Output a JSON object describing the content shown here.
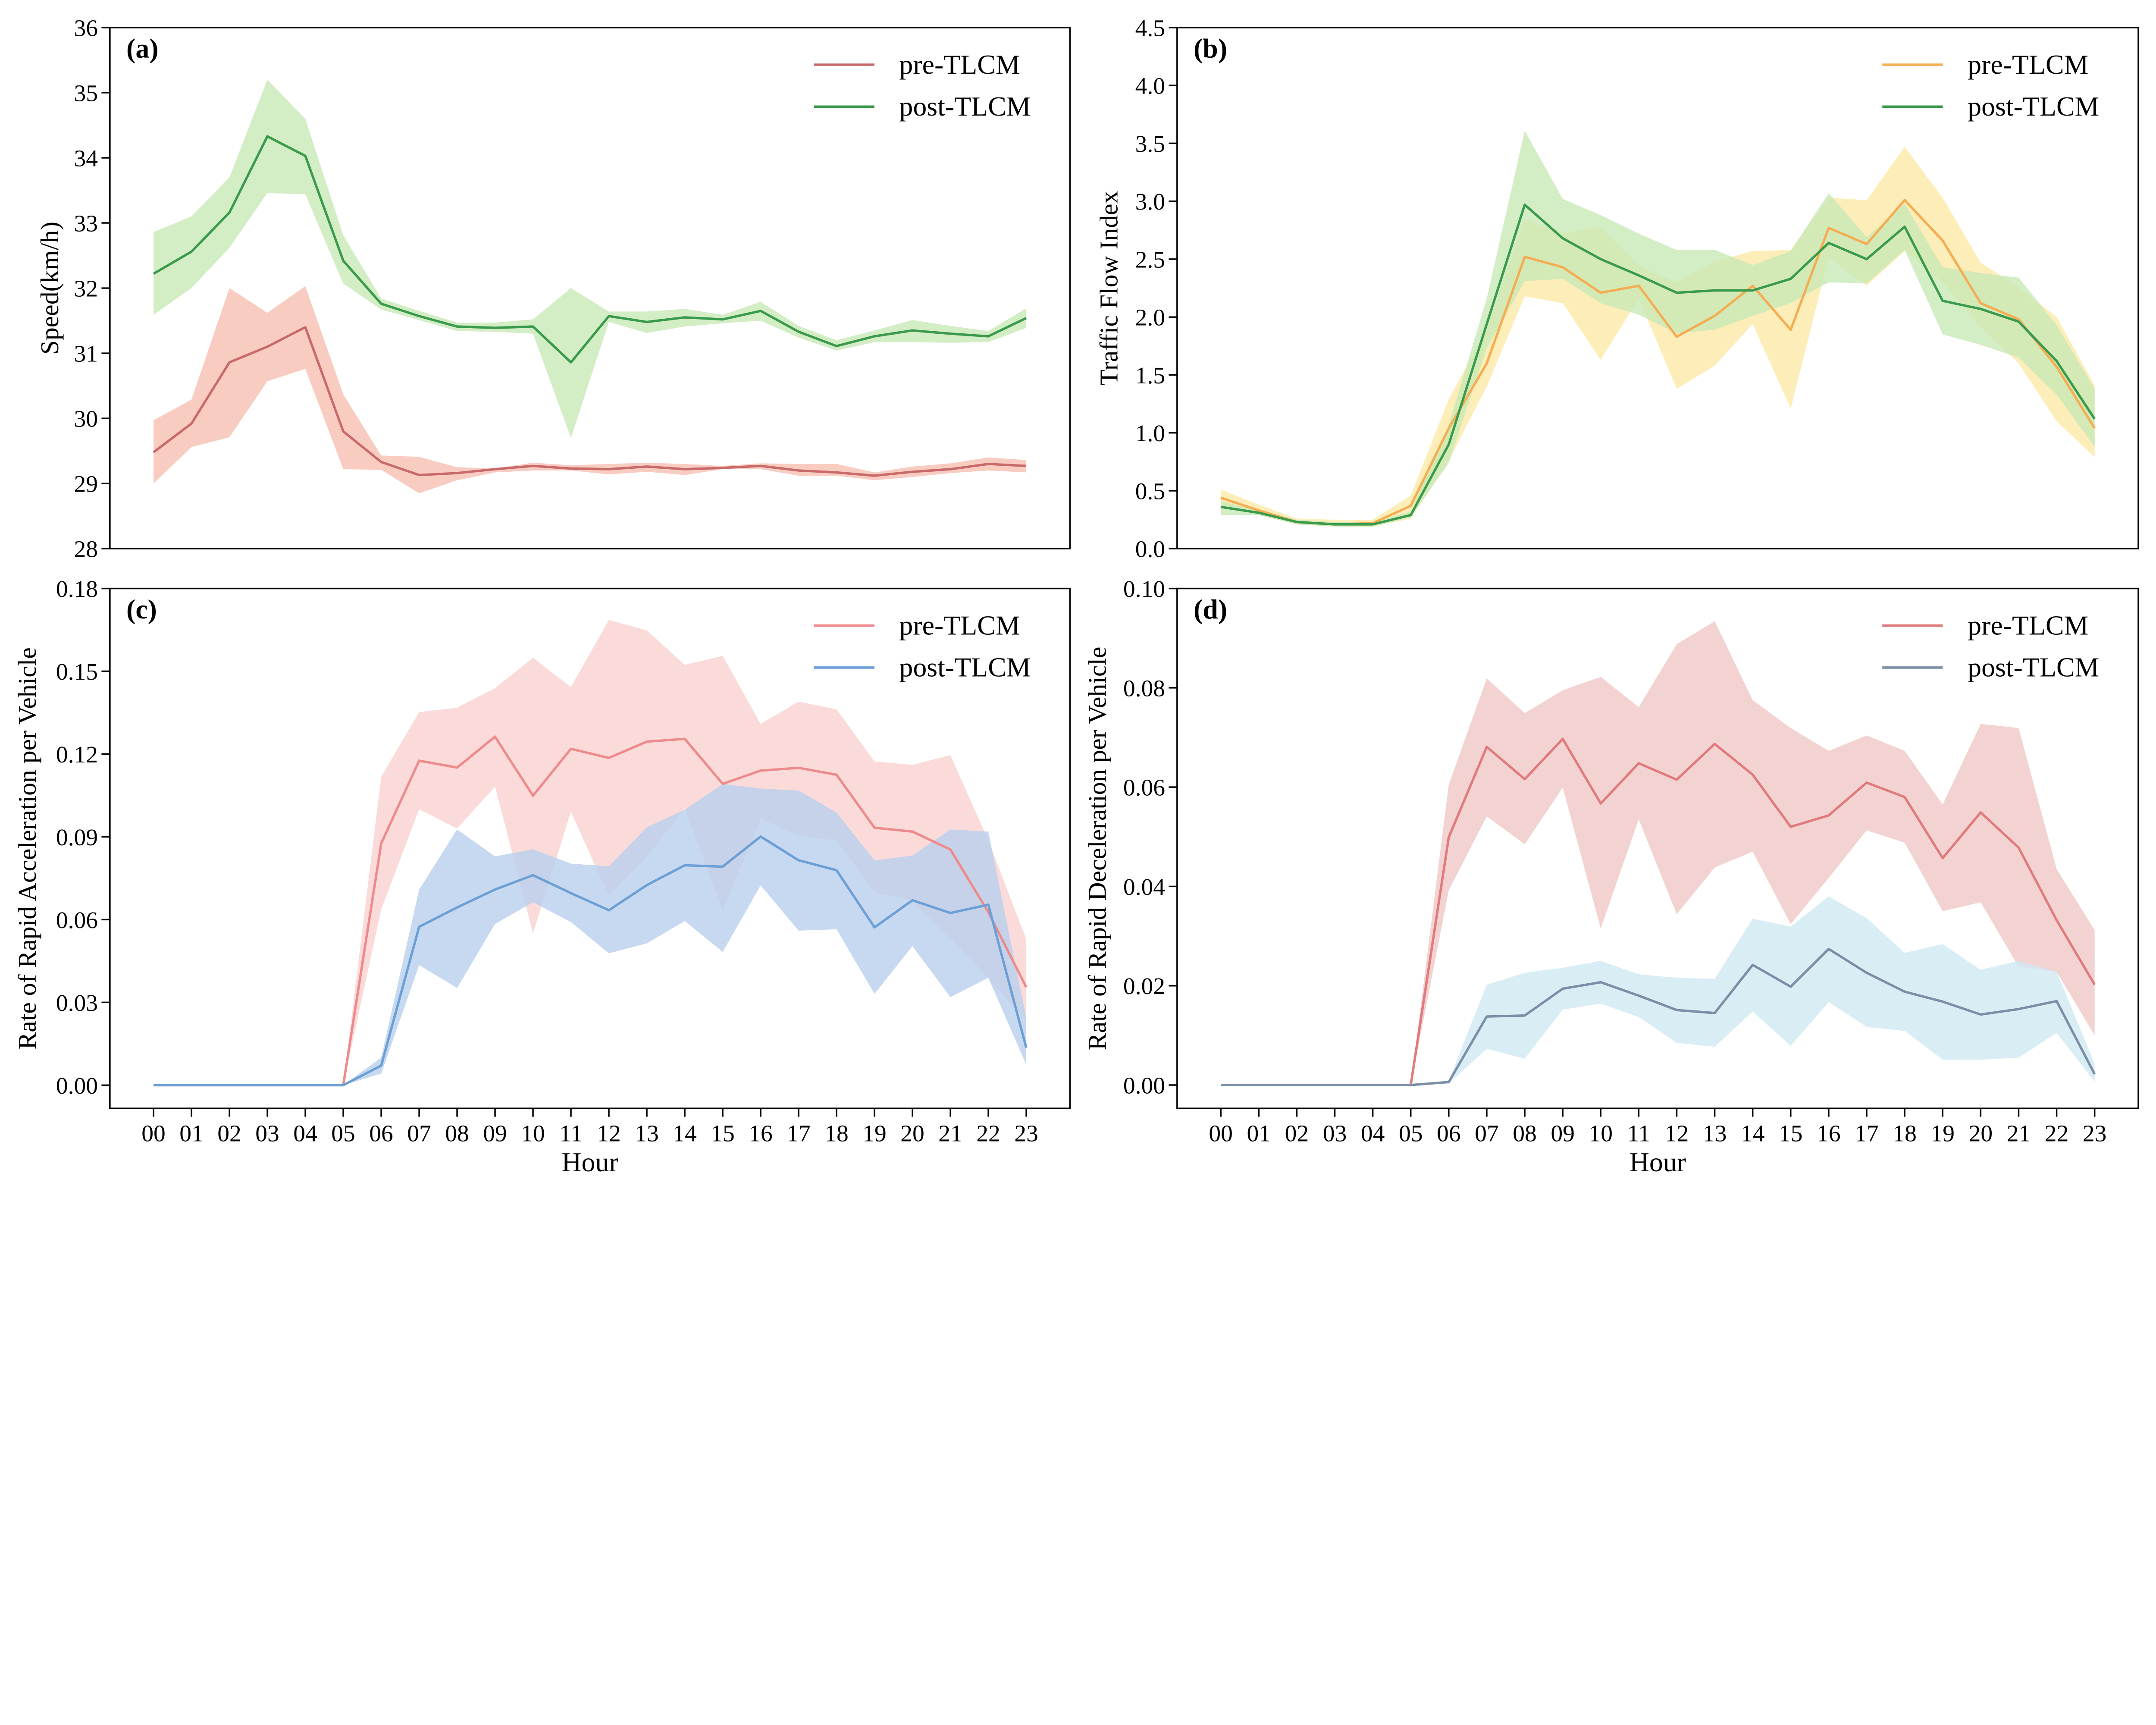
{
  "chart_data": [
    {
      "type": "line",
      "panel_label": "(a)",
      "xlabel": "",
      "ylabel": "Speed(km/h)",
      "x": [
        "00",
        "01",
        "02",
        "03",
        "04",
        "05",
        "06",
        "07",
        "08",
        "09",
        "10",
        "11",
        "12",
        "13",
        "14",
        "15",
        "16",
        "17",
        "18",
        "19",
        "20",
        "21",
        "22",
        "23"
      ],
      "xlim": [
        -1.15,
        24.15
      ],
      "ylim": [
        28,
        36
      ],
      "yticks": [
        "28",
        "29",
        "30",
        "31",
        "32",
        "33",
        "34",
        "35",
        "36"
      ],
      "ytick_values": [
        28,
        29,
        30,
        31,
        32,
        33,
        34,
        35,
        36
      ],
      "show_xticks": false,
      "grid": false,
      "legend_position": "top-right",
      "series": [
        {
          "name": "pre-TLCM",
          "color": "#c96a6a",
          "band_color": "#f7bfb3",
          "values": [
            29.48,
            29.92,
            30.86,
            31.1,
            31.4,
            29.8,
            29.33,
            29.13,
            29.16,
            29.22,
            29.27,
            29.23,
            29.22,
            29.26,
            29.22,
            29.24,
            29.27,
            29.2,
            29.17,
            29.12,
            29.18,
            29.22,
            29.3,
            29.27
          ],
          "upper": [
            29.97,
            30.29,
            32.0,
            31.62,
            32.03,
            30.37,
            29.43,
            29.41,
            29.25,
            29.23,
            29.32,
            29.28,
            29.3,
            29.32,
            29.3,
            29.27,
            29.31,
            29.3,
            29.3,
            29.17,
            29.26,
            29.31,
            29.4,
            29.36
          ],
          "lower": [
            29.0,
            29.56,
            29.71,
            30.57,
            30.76,
            29.22,
            29.21,
            28.85,
            29.05,
            29.17,
            29.2,
            29.2,
            29.14,
            29.18,
            29.13,
            29.22,
            29.22,
            29.12,
            29.12,
            29.05,
            29.1,
            29.16,
            29.2,
            29.17
          ]
        },
        {
          "name": "post-TLCM",
          "color": "#3a9a4c",
          "band_color": "#c8e9b6",
          "values": [
            32.22,
            32.56,
            33.16,
            34.33,
            34.03,
            32.42,
            31.76,
            31.57,
            31.41,
            31.39,
            31.41,
            30.86,
            31.57,
            31.48,
            31.55,
            31.52,
            31.65,
            31.33,
            31.11,
            31.26,
            31.35,
            31.3,
            31.26,
            31.54
          ],
          "upper": [
            32.86,
            33.1,
            33.7,
            35.2,
            34.6,
            32.81,
            31.84,
            31.65,
            31.47,
            31.47,
            31.52,
            32.0,
            31.64,
            31.64,
            31.68,
            31.59,
            31.79,
            31.42,
            31.2,
            31.35,
            31.51,
            31.42,
            31.34,
            31.69
          ],
          "lower": [
            31.59,
            32.0,
            32.62,
            33.46,
            33.44,
            32.07,
            31.67,
            31.51,
            31.34,
            31.33,
            31.3,
            29.7,
            31.48,
            31.31,
            31.41,
            31.46,
            31.5,
            31.24,
            31.04,
            31.17,
            31.17,
            31.16,
            31.17,
            31.39
          ]
        }
      ]
    },
    {
      "type": "line",
      "panel_label": "(b)",
      "xlabel": "",
      "ylabel": "Traffic Flow Index",
      "x": [
        "00",
        "01",
        "02",
        "03",
        "04",
        "05",
        "06",
        "07",
        "08",
        "09",
        "10",
        "11",
        "12",
        "13",
        "14",
        "15",
        "16",
        "17",
        "18",
        "19",
        "20",
        "21",
        "22",
        "23"
      ],
      "xlim": [
        -1.15,
        24.15
      ],
      "ylim": [
        0,
        4.5
      ],
      "yticks": [
        "0.0",
        "0.5",
        "1.0",
        "1.5",
        "2.0",
        "2.5",
        "3.0",
        "3.5",
        "4.0",
        "4.5"
      ],
      "ytick_values": [
        0,
        0.5,
        1,
        1.5,
        2,
        2.5,
        3,
        3.5,
        4,
        4.5
      ],
      "show_xticks": false,
      "grid": false,
      "legend_position": "top-right",
      "series": [
        {
          "name": "pre-TLCM",
          "color": "#f4ad52",
          "band_color": "#fde9a6",
          "values": [
            0.44,
            0.33,
            0.23,
            0.21,
            0.22,
            0.37,
            1.04,
            1.6,
            2.52,
            2.43,
            2.21,
            2.27,
            1.83,
            2.01,
            2.27,
            1.89,
            2.77,
            2.63,
            3.01,
            2.66,
            2.12,
            1.98,
            1.57,
            1.04
          ],
          "upper": [
            0.51,
            0.38,
            0.26,
            0.25,
            0.25,
            0.46,
            1.29,
            1.9,
            2.85,
            2.72,
            2.78,
            2.44,
            2.3,
            2.48,
            2.57,
            2.58,
            3.03,
            3.01,
            3.47,
            3.03,
            2.47,
            2.26,
            2.0,
            1.41
          ],
          "lower": [
            0.37,
            0.29,
            0.21,
            0.19,
            0.19,
            0.26,
            0.76,
            1.4,
            2.18,
            2.12,
            1.63,
            2.16,
            1.38,
            1.58,
            1.94,
            1.21,
            2.51,
            2.27,
            2.57,
            2.3,
            1.91,
            1.6,
            1.1,
            0.79
          ]
        },
        {
          "name": "post-TLCM",
          "color": "#3a9a4c",
          "band_color": "#c8e9b6",
          "values": [
            0.36,
            0.31,
            0.23,
            0.21,
            0.21,
            0.29,
            0.9,
            1.94,
            2.97,
            2.68,
            2.5,
            2.36,
            2.21,
            2.23,
            2.23,
            2.33,
            2.64,
            2.5,
            2.78,
            2.14,
            2.07,
            1.96,
            1.62,
            1.12
          ],
          "upper": [
            0.41,
            0.33,
            0.25,
            0.23,
            0.23,
            0.32,
            1.07,
            2.16,
            3.61,
            3.02,
            2.88,
            2.72,
            2.58,
            2.58,
            2.45,
            2.57,
            3.07,
            2.69,
            2.98,
            2.43,
            2.38,
            2.34,
            1.93,
            1.38
          ],
          "lower": [
            0.29,
            0.29,
            0.21,
            0.19,
            0.19,
            0.27,
            0.74,
            1.73,
            2.31,
            2.33,
            2.12,
            2.02,
            1.86,
            1.89,
            2.01,
            2.12,
            2.3,
            2.29,
            2.58,
            1.85,
            1.76,
            1.65,
            1.33,
            0.88
          ]
        }
      ]
    },
    {
      "type": "line",
      "panel_label": "(c)",
      "xlabel": "Hour",
      "ylabel": "Rate of Rapid Acceleration per Vehicle",
      "x": [
        "00",
        "01",
        "02",
        "03",
        "04",
        "05",
        "06",
        "07",
        "08",
        "09",
        "10",
        "11",
        "12",
        "13",
        "14",
        "15",
        "16",
        "17",
        "18",
        "19",
        "20",
        "21",
        "22",
        "23"
      ],
      "xlim": [
        -1.15,
        24.15
      ],
      "ylim": [
        -0.0084,
        0.18
      ],
      "yticks": [
        "0.00",
        "0.03",
        "0.06",
        "0.09",
        "0.12",
        "0.15",
        "0.18"
      ],
      "ytick_values": [
        0,
        0.03,
        0.06,
        0.09,
        0.12,
        0.15,
        0.18
      ],
      "show_xticks": true,
      "grid": false,
      "legend_position": "top-right",
      "series": [
        {
          "name": "pre-TLCM",
          "color": "#ee8a8c",
          "band_color": "#f9d2d1",
          "values": [
            0,
            0,
            0,
            0,
            0,
            0,
            0.0876,
            0.1176,
            0.1151,
            0.1263,
            0.1049,
            0.1219,
            0.1186,
            0.1245,
            0.1255,
            0.1092,
            0.114,
            0.115,
            0.1125,
            0.0933,
            0.0919,
            0.0854,
            0.0627,
            0.0355
          ],
          "upper": [
            0,
            0,
            0,
            0,
            0,
            0,
            0.1118,
            0.1352,
            0.1368,
            0.1439,
            0.1549,
            0.1443,
            0.1686,
            0.1648,
            0.1523,
            0.1556,
            0.1309,
            0.139,
            0.1362,
            0.1173,
            0.1161,
            0.1196,
            0.0887,
            0.0529
          ],
          "lower": [
            0,
            0,
            0,
            0,
            0,
            0,
            0.0637,
            0.1,
            0.093,
            0.1082,
            0.055,
            0.0991,
            0.0685,
            0.0829,
            0.1003,
            0.063,
            0.0966,
            0.0904,
            0.0887,
            0.0699,
            0.067,
            0.0533,
            0.0389,
            0.0237
          ]
        },
        {
          "name": "post-TLCM",
          "color": "#6b9fd6",
          "band_color": "#b9d0ec",
          "values": [
            0,
            0,
            0,
            0,
            0,
            0,
            0.0071,
            0.0574,
            0.0644,
            0.0709,
            0.0761,
            0.0696,
            0.0634,
            0.0725,
            0.0797,
            0.0792,
            0.0901,
            0.0815,
            0.0779,
            0.0572,
            0.067,
            0.0624,
            0.0654,
            0.0136
          ],
          "upper": [
            0,
            0,
            0,
            0,
            0,
            0,
            0.01,
            0.0709,
            0.0927,
            0.0829,
            0.0855,
            0.0803,
            0.0793,
            0.0935,
            0.0998,
            0.1092,
            0.1075,
            0.1068,
            0.0988,
            0.0815,
            0.0832,
            0.0927,
            0.0919,
            0.0244
          ],
          "lower": [
            0,
            0,
            0,
            0,
            0,
            0,
            0.0042,
            0.0435,
            0.0352,
            0.0584,
            0.0663,
            0.0591,
            0.0478,
            0.0514,
            0.0595,
            0.0483,
            0.0724,
            0.056,
            0.0565,
            0.0331,
            0.0504,
            0.0319,
            0.0389,
            0.0074
          ]
        }
      ]
    },
    {
      "type": "line",
      "panel_label": "(d)",
      "xlabel": "Hour",
      "ylabel": "Rate of Rapid Deceleration per Vehicle",
      "x": [
        "00",
        "01",
        "02",
        "03",
        "04",
        "05",
        "06",
        "07",
        "08",
        "09",
        "10",
        "11",
        "12",
        "13",
        "14",
        "15",
        "16",
        "17",
        "18",
        "19",
        "20",
        "21",
        "22",
        "23"
      ],
      "xlim": [
        -1.15,
        24.15
      ],
      "ylim": [
        -0.0047,
        0.1
      ],
      "yticks": [
        "0.00",
        "0.02",
        "0.04",
        "0.06",
        "0.08",
        "0.10"
      ],
      "ytick_values": [
        0,
        0.02,
        0.04,
        0.06,
        0.08,
        0.1
      ],
      "show_xticks": true,
      "grid": false,
      "legend_position": "top-right",
      "series": [
        {
          "name": "pre-TLCM",
          "color": "#e07a7c",
          "band_color": "#efc8c5",
          "values": [
            0,
            0,
            0,
            0,
            0,
            0,
            0.0499,
            0.0681,
            0.0616,
            0.0697,
            0.0567,
            0.0648,
            0.0615,
            0.0687,
            0.0625,
            0.052,
            0.0543,
            0.0609,
            0.058,
            0.0457,
            0.0549,
            0.0478,
            0.0332,
            0.0202
          ],
          "upper": [
            0,
            0,
            0,
            0,
            0,
            0,
            0.0605,
            0.0819,
            0.0749,
            0.0795,
            0.0822,
            0.0761,
            0.0888,
            0.0934,
            0.0775,
            0.0719,
            0.0673,
            0.0704,
            0.0673,
            0.0565,
            0.0727,
            0.0719,
            0.0435,
            0.0312
          ],
          "lower": [
            0,
            0,
            0,
            0,
            0,
            0,
            0.0392,
            0.0541,
            0.0485,
            0.0599,
            0.0315,
            0.0535,
            0.0344,
            0.0438,
            0.047,
            0.0324,
            0.0417,
            0.0513,
            0.0488,
            0.035,
            0.0368,
            0.0238,
            0.0228,
            0.01
          ]
        },
        {
          "name": "post-TLCM",
          "color": "#7b8ea6",
          "band_color": "#cfe8f3",
          "values": [
            0,
            0,
            0,
            0,
            0,
            0,
            0.0006,
            0.0138,
            0.014,
            0.0194,
            0.0207,
            0.018,
            0.0151,
            0.0145,
            0.0242,
            0.0198,
            0.0274,
            0.0226,
            0.0188,
            0.0168,
            0.0142,
            0.0153,
            0.0169,
            0.0022
          ],
          "upper": [
            0,
            0,
            0,
            0,
            0,
            0,
            0.0009,
            0.0202,
            0.0226,
            0.0236,
            0.025,
            0.0223,
            0.0216,
            0.0214,
            0.0335,
            0.0319,
            0.038,
            0.0336,
            0.0266,
            0.0284,
            0.0232,
            0.025,
            0.0228,
            0.0043
          ],
          "lower": [
            0,
            0,
            0,
            0,
            0,
            0,
            0.0003,
            0.0073,
            0.0053,
            0.0152,
            0.0164,
            0.0137,
            0.0085,
            0.0077,
            0.0148,
            0.0079,
            0.0167,
            0.0117,
            0.0109,
            0.0051,
            0.0051,
            0.0055,
            0.0105,
            0.0007
          ]
        }
      ]
    }
  ]
}
